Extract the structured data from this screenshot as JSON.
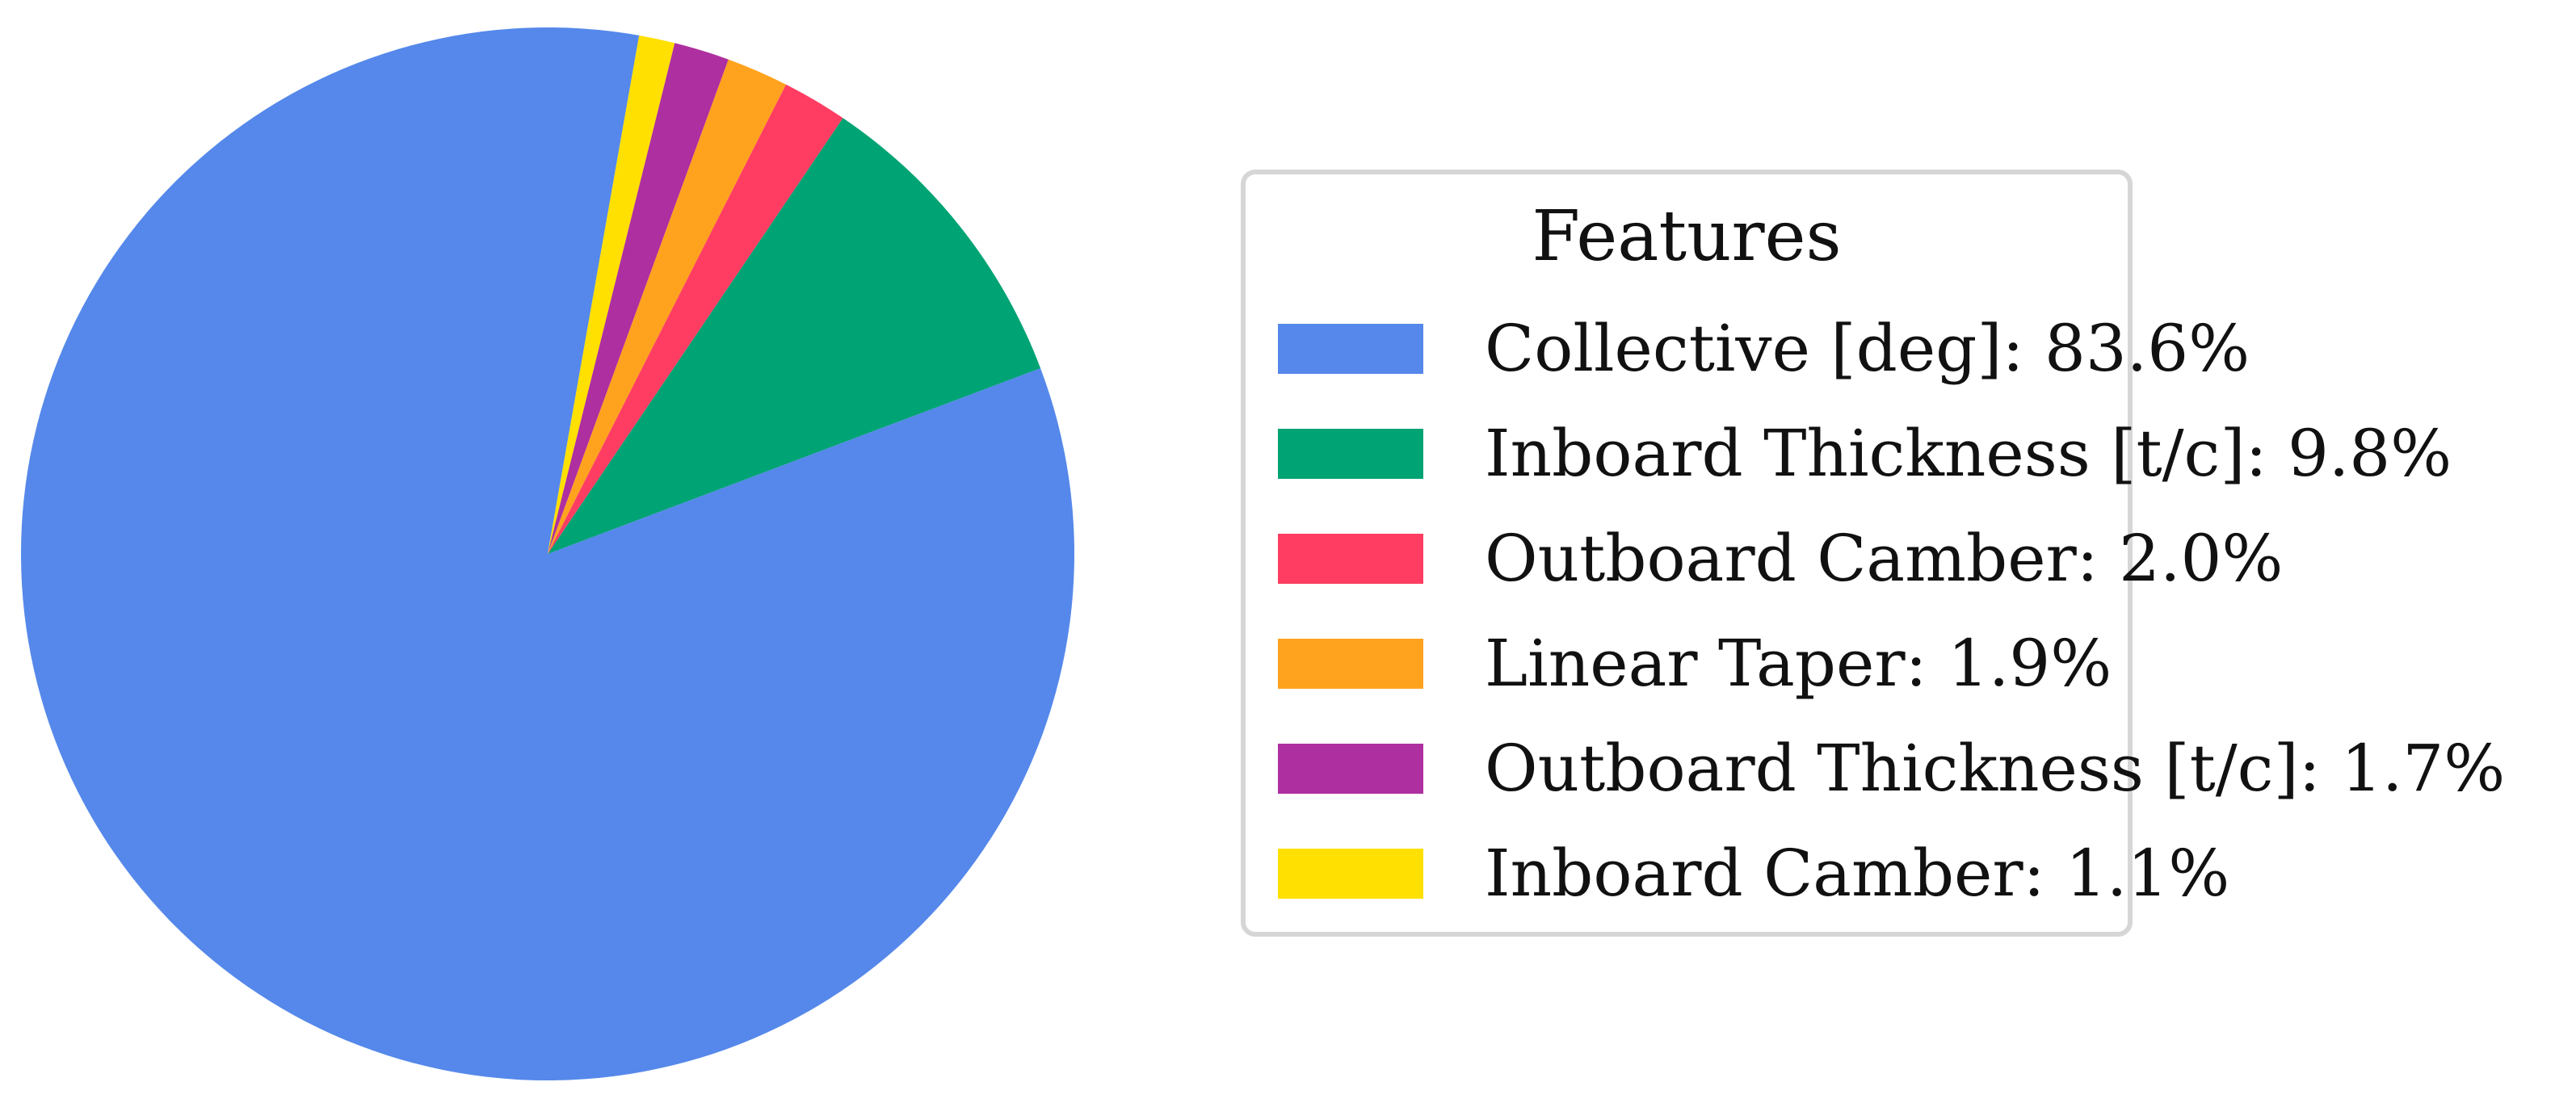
{
  "chart_data": {
    "type": "pie",
    "legend_title": "Features",
    "legend_position": "right",
    "start_angle_deg": 80,
    "direction": "counterclockwise",
    "slices": [
      {
        "label": "Collective [deg]: 83.6%",
        "value": 83.6,
        "color": "#5588EA"
      },
      {
        "label": "Inboard Thickness [t/c]: 9.8%",
        "value": 9.8,
        "color": "#00A374"
      },
      {
        "label": "Outboard Camber: 2.0%",
        "value": 2.0,
        "color": "#FF3D62"
      },
      {
        "label": "Linear Taper: 1.9%",
        "value": 1.9,
        "color": "#FFA31E"
      },
      {
        "label": "Outboard Thickness [t/c]: 1.7%",
        "value": 1.7,
        "color": "#AE2F9F"
      },
      {
        "label": "Inboard Camber: 1.1%",
        "value": 1.1,
        "color": "#FFE000"
      }
    ]
  }
}
